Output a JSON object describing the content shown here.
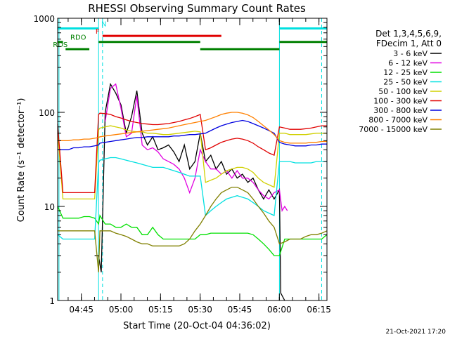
{
  "chart_data": {
    "type": "line",
    "title": "RHESSI Observing Summary Count Rates",
    "xlabel": "Start Time (20-Oct-04 04:36:02)",
    "ylabel": "Count Rate (s⁻¹ detector⁻¹)",
    "yscale": "log",
    "ylim": [
      1,
      1000
    ],
    "xlim_minutes": [
      0,
      102
    ],
    "x_unit": "minutes since 04:36:02",
    "x_ticks": [
      {
        "minute": 8.97,
        "label": "04:45"
      },
      {
        "minute": 23.97,
        "label": "05:00"
      },
      {
        "minute": 38.97,
        "label": "05:15"
      },
      {
        "minute": 53.97,
        "label": "05:30"
      },
      {
        "minute": 68.97,
        "label": "05:45"
      },
      {
        "minute": 83.97,
        "label": "06:00"
      },
      {
        "minute": 98.97,
        "label": "06:15"
      }
    ],
    "y_ticks": [
      {
        "value": 1,
        "label": "1"
      },
      {
        "value": 10,
        "label": "10"
      },
      {
        "value": 100,
        "label": "100"
      },
      {
        "value": 1000,
        "label": "1000"
      }
    ],
    "legend": {
      "placement": "right",
      "header": [
        "Det 1,3,4,5,6,9,",
        "FDecim 1, Att 0"
      ]
    },
    "flags": [
      {
        "label": "N",
        "color": "#00e0e0",
        "y": 780,
        "segments": [
          [
            0,
            15.5
          ],
          [
            84,
            102
          ]
        ]
      },
      {
        "label": "F",
        "color": "#e00000",
        "y": 650,
        "segments": [
          [
            17,
            62
          ]
        ]
      },
      {
        "label": "RDO",
        "color": "#008000",
        "y": 560,
        "segments": [
          [
            0,
            2
          ],
          [
            15.5,
            54
          ],
          [
            84,
            102
          ]
        ]
      },
      {
        "label": "RDS",
        "color": "#008000",
        "y": 470,
        "segments": [
          [
            3,
            12
          ],
          [
            54,
            84
          ]
        ]
      }
    ],
    "vlines": {
      "solid": [
        0.5,
        15.5,
        84
      ],
      "dashed": [
        17,
        100
      ],
      "color": "#00e0e0"
    },
    "series": [
      {
        "name": "3 - 6 keV",
        "color": "#000000",
        "x": [
          14,
          15.5,
          16.5,
          18,
          20,
          22,
          24,
          26,
          28,
          30,
          32,
          34,
          36,
          38,
          40,
          42,
          44,
          46,
          48,
          50,
          52,
          54,
          56,
          58,
          60,
          62,
          64,
          66,
          68,
          70,
          72,
          74,
          76,
          78,
          80,
          82,
          84,
          84.5,
          86
        ],
        "y": [
          3,
          3,
          2,
          100,
          200,
          160,
          120,
          60,
          90,
          170,
          60,
          45,
          55,
          40,
          42,
          45,
          38,
          30,
          45,
          25,
          30,
          60,
          30,
          35,
          25,
          30,
          22,
          25,
          20,
          22,
          18,
          20,
          15,
          12,
          15,
          12,
          15,
          1.2,
          1
        ]
      },
      {
        "name": "6 - 12 keV",
        "color": "#e000e0",
        "x": [
          18,
          20,
          22,
          24,
          26,
          28,
          30,
          32,
          34,
          36,
          38,
          40,
          42,
          44,
          46,
          48,
          50,
          52,
          54,
          56,
          58,
          60,
          62,
          64,
          66,
          68,
          70,
          72,
          74,
          76,
          78,
          80,
          82,
          84,
          85,
          86,
          87
        ],
        "y": [
          80,
          180,
          200,
          110,
          55,
          60,
          150,
          45,
          40,
          42,
          38,
          32,
          30,
          28,
          25,
          20,
          14,
          20,
          40,
          30,
          25,
          25,
          22,
          24,
          20,
          24,
          20,
          20,
          18,
          15,
          13,
          12,
          14,
          15,
          9,
          10,
          9
        ]
      },
      {
        "name": "12 - 25 keV",
        "color": "#00e000",
        "x": [
          0,
          2,
          4,
          6,
          8,
          10,
          12,
          14,
          15.5,
          16,
          18,
          20,
          22,
          24,
          26,
          28,
          30,
          32,
          34,
          36,
          38,
          40,
          42,
          44,
          46,
          48,
          50,
          52,
          54,
          56,
          58,
          60,
          62,
          64,
          66,
          68,
          70,
          72,
          74,
          76,
          78,
          80,
          82,
          84,
          86,
          88,
          90,
          92,
          94,
          96,
          98,
          100,
          102
        ],
        "y": [
          10,
          7.5,
          7.5,
          7.5,
          7.5,
          7.8,
          7.8,
          7.5,
          6.5,
          8,
          6.5,
          6.5,
          6,
          6,
          6.5,
          6,
          6,
          5,
          5,
          6,
          5,
          4.5,
          4.5,
          4.5,
          4.5,
          4.5,
          4.5,
          4.5,
          5,
          5,
          5.2,
          5.2,
          5.2,
          5.2,
          5.2,
          5.2,
          5.2,
          5.2,
          5,
          4.5,
          4,
          3.5,
          3,
          3,
          4.5,
          4.5,
          4.5,
          4.5,
          4.5,
          4.5,
          4.5,
          4.5,
          5
        ]
      },
      {
        "name": "25 - 50 keV",
        "color": "#00e0e0",
        "x": [
          0,
          2,
          4,
          6,
          8,
          10,
          12,
          14,
          15.5,
          16,
          18,
          20,
          22,
          24,
          26,
          28,
          30,
          32,
          34,
          36,
          38,
          40,
          42,
          44,
          46,
          48,
          50,
          52,
          54,
          56,
          58,
          60,
          62,
          64,
          66,
          68,
          70,
          72,
          74,
          76,
          78,
          80,
          82,
          84,
          86,
          88,
          90,
          92,
          94,
          96,
          98,
          100,
          102
        ],
        "y": [
          5,
          4.5,
          4.5,
          4.5,
          4.5,
          4.5,
          4.5,
          4.5,
          29,
          31,
          32,
          33,
          33,
          32,
          31,
          30,
          29,
          28,
          27,
          26,
          26,
          26,
          25,
          24,
          23,
          22,
          21,
          21,
          21,
          8,
          9,
          10,
          11,
          12,
          12.5,
          13,
          12.5,
          12,
          11,
          10,
          9,
          8.5,
          8,
          30,
          30,
          30,
          29,
          29,
          29,
          29,
          30,
          30,
          30
        ]
      },
      {
        "name": "50 - 100 keV",
        "color": "#d0d000",
        "x": [
          0,
          2,
          4,
          6,
          8,
          10,
          12,
          14,
          15.5,
          16,
          18,
          20,
          22,
          24,
          26,
          28,
          30,
          32,
          34,
          36,
          38,
          40,
          42,
          44,
          46,
          48,
          50,
          52,
          54,
          56,
          58,
          60,
          62,
          64,
          66,
          68,
          70,
          72,
          74,
          76,
          78,
          80,
          82,
          84,
          86,
          88,
          90,
          92,
          94,
          96,
          98,
          100,
          102
        ],
        "y": [
          60,
          12,
          12,
          12,
          12,
          12,
          12,
          12,
          65,
          68,
          70,
          72,
          70,
          68,
          65,
          63,
          62,
          62,
          60,
          60,
          59,
          58,
          58,
          59,
          60,
          61,
          62,
          63,
          62,
          18,
          19,
          20,
          22,
          24,
          25,
          26,
          26,
          25,
          23,
          20,
          18,
          17,
          16,
          60,
          60,
          58,
          58,
          58,
          58,
          59,
          60,
          60,
          60
        ]
      },
      {
        "name": "100 - 300 keV",
        "color": "#e00000",
        "x": [
          0,
          2,
          4,
          6,
          8,
          10,
          12,
          14,
          15.5,
          16,
          18,
          20,
          22,
          24,
          26,
          28,
          30,
          32,
          34,
          36,
          38,
          40,
          42,
          44,
          46,
          48,
          50,
          52,
          54,
          56,
          58,
          60,
          62,
          64,
          66,
          68,
          70,
          72,
          74,
          76,
          78,
          80,
          82,
          84,
          86,
          88,
          90,
          92,
          94,
          96,
          98,
          100,
          102
        ],
        "y": [
          75,
          14,
          14,
          14,
          14,
          14,
          14,
          14,
          95,
          98,
          97,
          95,
          90,
          87,
          83,
          80,
          78,
          76,
          75,
          74,
          74,
          75,
          76,
          78,
          80,
          83,
          86,
          90,
          95,
          40,
          42,
          45,
          48,
          50,
          52,
          53,
          52,
          50,
          47,
          43,
          40,
          37,
          35,
          70,
          68,
          66,
          66,
          66,
          67,
          68,
          70,
          72,
          72
        ]
      },
      {
        "name": "300 - 800 keV",
        "color": "#0000e0",
        "x": [
          0,
          2,
          4,
          6,
          8,
          10,
          12,
          14,
          15.5,
          16,
          18,
          20,
          22,
          24,
          26,
          28,
          30,
          32,
          34,
          36,
          38,
          40,
          42,
          44,
          46,
          48,
          50,
          52,
          54,
          56,
          58,
          60,
          62,
          64,
          66,
          68,
          70,
          72,
          74,
          76,
          78,
          80,
          82,
          84,
          86,
          88,
          90,
          92,
          94,
          96,
          98,
          100,
          102
        ],
        "y": [
          40,
          40,
          40,
          42,
          42,
          43,
          43,
          44,
          45,
          47,
          48,
          49,
          50,
          51,
          52,
          53,
          54,
          54,
          55,
          55,
          55,
          55,
          55,
          56,
          56,
          57,
          58,
          58,
          59,
          60,
          64,
          68,
          72,
          75,
          78,
          80,
          82,
          80,
          76,
          72,
          68,
          64,
          60,
          48,
          46,
          45,
          44,
          44,
          44,
          45,
          45,
          46,
          46
        ]
      },
      {
        "name": "800 - 7000 keV",
        "color": "#ff8000",
        "x": [
          0,
          2,
          4,
          6,
          8,
          10,
          12,
          14,
          15.5,
          16,
          18,
          20,
          22,
          24,
          26,
          28,
          30,
          32,
          34,
          36,
          38,
          40,
          42,
          44,
          46,
          48,
          50,
          52,
          54,
          56,
          58,
          60,
          62,
          64,
          66,
          68,
          70,
          72,
          74,
          76,
          78,
          80,
          82,
          84,
          86,
          88,
          90,
          92,
          94,
          96,
          98,
          100,
          102
        ],
        "y": [
          50,
          50,
          50,
          51,
          51,
          52,
          52,
          53,
          54,
          55,
          56,
          57,
          58,
          59,
          60,
          61,
          62,
          63,
          64,
          65,
          66,
          67,
          68,
          70,
          72,
          74,
          76,
          78,
          80,
          82,
          86,
          90,
          95,
          98,
          100,
          100,
          98,
          94,
          88,
          80,
          72,
          65,
          58,
          50,
          48,
          47,
          47,
          47,
          47,
          48,
          48,
          49,
          49
        ]
      },
      {
        "name": "7000 - 15000 keV",
        "color": "#808000",
        "x": [
          0,
          2,
          4,
          6,
          8,
          10,
          12,
          14,
          15.5,
          16,
          18,
          20,
          22,
          24,
          26,
          28,
          30,
          32,
          34,
          36,
          38,
          40,
          42,
          44,
          46,
          48,
          50,
          52,
          54,
          56,
          58,
          60,
          62,
          64,
          66,
          68,
          70,
          72,
          74,
          76,
          78,
          80,
          82,
          84,
          86,
          88,
          90,
          92,
          94,
          96,
          98,
          100,
          102
        ],
        "y": [
          5.5,
          5.5,
          5.5,
          5.5,
          5.5,
          5.5,
          5.5,
          5.5,
          2,
          5.5,
          5.5,
          5.5,
          5.2,
          5,
          4.8,
          4.5,
          4.2,
          4,
          4,
          3.8,
          3.8,
          3.8,
          3.8,
          3.8,
          3.8,
          4,
          4.5,
          5.5,
          6.5,
          8,
          10,
          12,
          14,
          15,
          16,
          16,
          15,
          14,
          12,
          10,
          8.5,
          7,
          6,
          4,
          4.2,
          4.5,
          4.5,
          4.5,
          4.8,
          5,
          5,
          5.2,
          5.5
        ]
      }
    ]
  },
  "footer": {
    "timestamp": "21-Oct-2021 17:20"
  }
}
